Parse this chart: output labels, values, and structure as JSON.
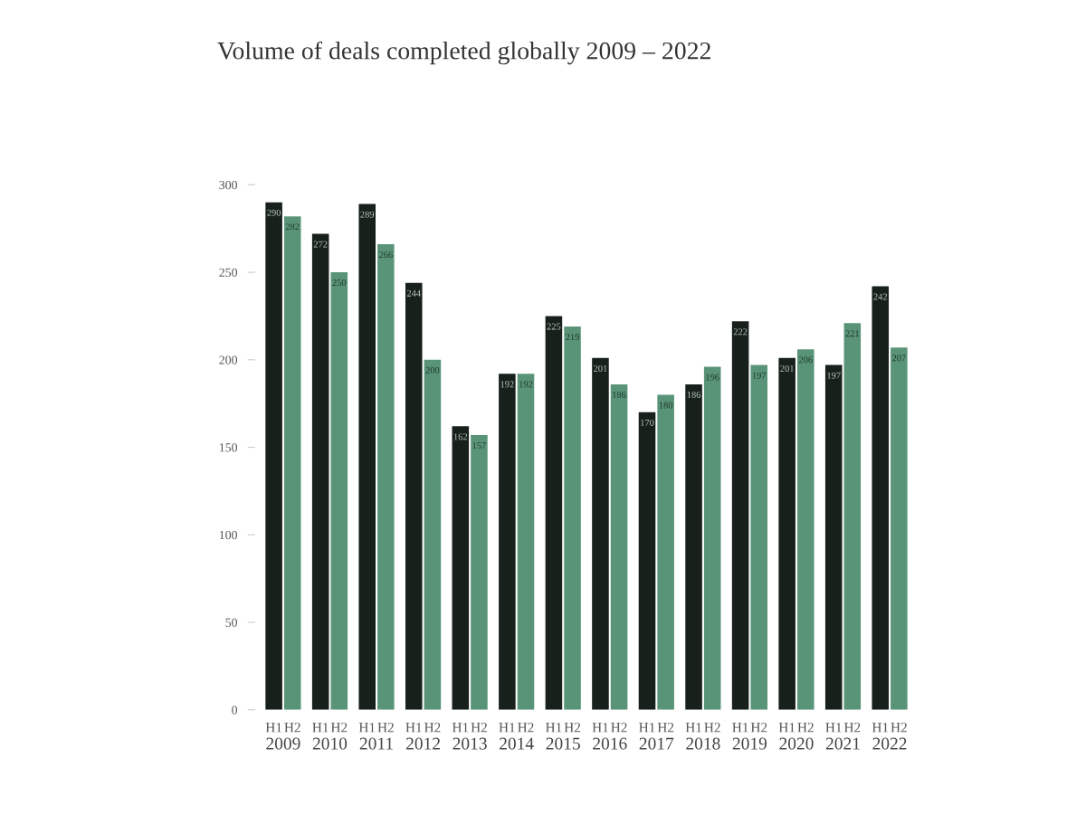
{
  "chart_data": {
    "type": "bar",
    "title": "Volume of deals completed globally 2009 – 2022",
    "categories": [
      "2009",
      "2010",
      "2011",
      "2012",
      "2013",
      "2014",
      "2015",
      "2016",
      "2017",
      "2018",
      "2019",
      "2020",
      "2021",
      "2022"
    ],
    "series": [
      {
        "name": "H1",
        "color": "#17201b",
        "values": [
          290,
          272,
          289,
          244,
          162,
          192,
          225,
          201,
          170,
          186,
          222,
          201,
          197,
          242
        ]
      },
      {
        "name": "H2",
        "color": "#5a9478",
        "values": [
          282,
          250,
          266,
          200,
          157,
          192,
          219,
          186,
          180,
          196,
          197,
          206,
          221,
          207
        ]
      }
    ],
    "ylim": [
      0,
      300
    ],
    "yticks": [
      0,
      50,
      100,
      150,
      200,
      250,
      300
    ],
    "data_labels": true,
    "grid": false,
    "legend": false
  }
}
